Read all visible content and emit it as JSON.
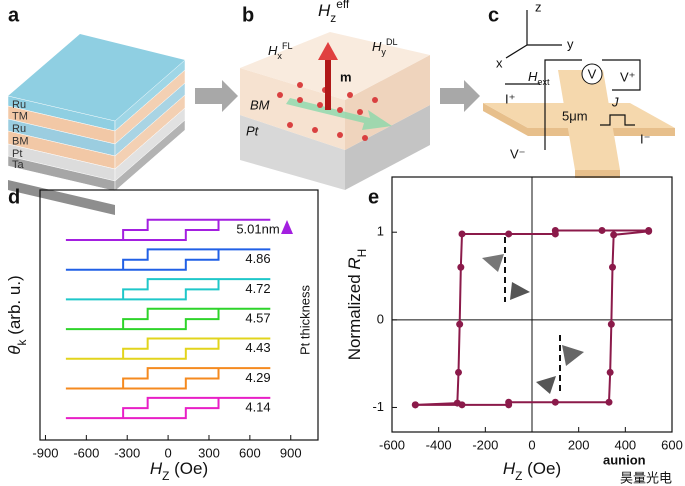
{
  "panels": {
    "a": {
      "label": "a",
      "layers": [
        "Ru",
        "TM",
        "Ru",
        "BM",
        "Pt",
        "Ta"
      ]
    },
    "b": {
      "label": "b",
      "field_z": {
        "var": "H",
        "sub": "z",
        "sup": "eff"
      },
      "field_x": {
        "var": "H",
        "sub": "x",
        "sup": "FL"
      },
      "field_y": {
        "var": "H",
        "sub": "y",
        "sup": "DL"
      },
      "moment": "m",
      "layer_top": "BM",
      "layer_bottom": "Pt"
    },
    "c": {
      "label": "c",
      "axes": [
        "z",
        "x",
        "y"
      ],
      "field": {
        "var": "H",
        "sub": "ext"
      },
      "voltmeter": "V",
      "v_plus": "V⁺",
      "v_minus": "V⁻",
      "i_plus": "I⁺",
      "i_minus": "I⁻",
      "current": "J",
      "scale": "5μm"
    }
  },
  "chart_data": [
    {
      "type": "line",
      "panel_label": "d",
      "y_label": {
        "var": "θ",
        "sub": "k",
        "post": " (arb. u.)"
      },
      "x_label": {
        "var": "H",
        "sub": "Z",
        "post": " (Oe)"
      },
      "side_label": "Pt thickness",
      "xlim": [
        -940,
        1100
      ],
      "xticks": [
        -900,
        -600,
        -300,
        0,
        300,
        600,
        900
      ],
      "ylim": [
        0,
        8
      ],
      "x": [
        -750,
        130,
        130,
        370,
        370,
        750,
        -150,
        -150,
        -330,
        -330,
        -750
      ],
      "series": [
        {
          "name": "4.14",
          "color": "#e81fc6",
          "values": [
            0.7,
            0.7,
            1.02,
            1.02,
            1.35,
            1.35,
            1.35,
            1.02,
            1.02,
            0.7,
            0.7
          ]
        },
        {
          "name": "4.29",
          "color": "#f58a1f",
          "values": [
            1.65,
            1.65,
            1.97,
            1.97,
            2.3,
            2.3,
            2.3,
            1.97,
            1.97,
            1.65,
            1.65
          ]
        },
        {
          "name": "4.43",
          "color": "#e2d41c",
          "values": [
            2.6,
            2.6,
            2.92,
            2.92,
            3.25,
            3.25,
            3.25,
            2.92,
            2.92,
            2.6,
            2.6
          ]
        },
        {
          "name": "4.57",
          "color": "#2ed42a",
          "values": [
            3.55,
            3.55,
            3.87,
            3.87,
            4.2,
            4.2,
            4.2,
            3.87,
            3.87,
            3.55,
            3.55
          ]
        },
        {
          "name": "4.72",
          "color": "#1fc7c9",
          "values": [
            4.5,
            4.5,
            4.82,
            4.82,
            5.15,
            5.15,
            5.15,
            4.82,
            4.82,
            4.5,
            4.5
          ]
        },
        {
          "name": "4.86",
          "color": "#2160e6",
          "values": [
            5.45,
            5.45,
            5.77,
            5.77,
            6.1,
            6.1,
            6.1,
            5.77,
            5.77,
            5.45,
            5.45
          ]
        },
        {
          "name": "5.01nm",
          "color": "#a31fe0",
          "values": [
            6.4,
            6.4,
            6.72,
            6.72,
            7.05,
            7.05,
            7.05,
            6.72,
            6.72,
            6.4,
            6.4
          ]
        }
      ]
    },
    {
      "type": "scatter",
      "panel_label": "e",
      "y_label": {
        "pre": "Normalized ",
        "var": "R",
        "sub": "H"
      },
      "x_label": {
        "var": "H",
        "sub": "Z",
        "post": " (Oe)"
      },
      "xlim": [
        -600,
        600
      ],
      "xticks": [
        -600,
        -400,
        -200,
        0,
        200,
        400,
        600
      ],
      "ylim": [
        -1.28,
        1.63
      ],
      "yticks": [
        -1,
        0,
        1
      ],
      "color": "#8b1a4a",
      "x": [
        -500,
        -300,
        -100,
        -100,
        100,
        330,
        335,
        340,
        345,
        350,
        500,
        500,
        300,
        100,
        100,
        -100,
        -300,
        -305,
        -310,
        -315,
        -320,
        -500
      ],
      "values": [
        -0.97,
        -0.97,
        -0.97,
        -0.94,
        -0.94,
        -0.94,
        -0.6,
        -0.05,
        0.6,
        0.97,
        1.01,
        1.02,
        1.02,
        1.02,
        0.98,
        0.98,
        0.98,
        0.6,
        -0.05,
        -0.6,
        -0.95,
        -0.97
      ]
    }
  ],
  "watermark": {
    "brand": "aunion",
    "brand_cn": "昊量光电"
  }
}
